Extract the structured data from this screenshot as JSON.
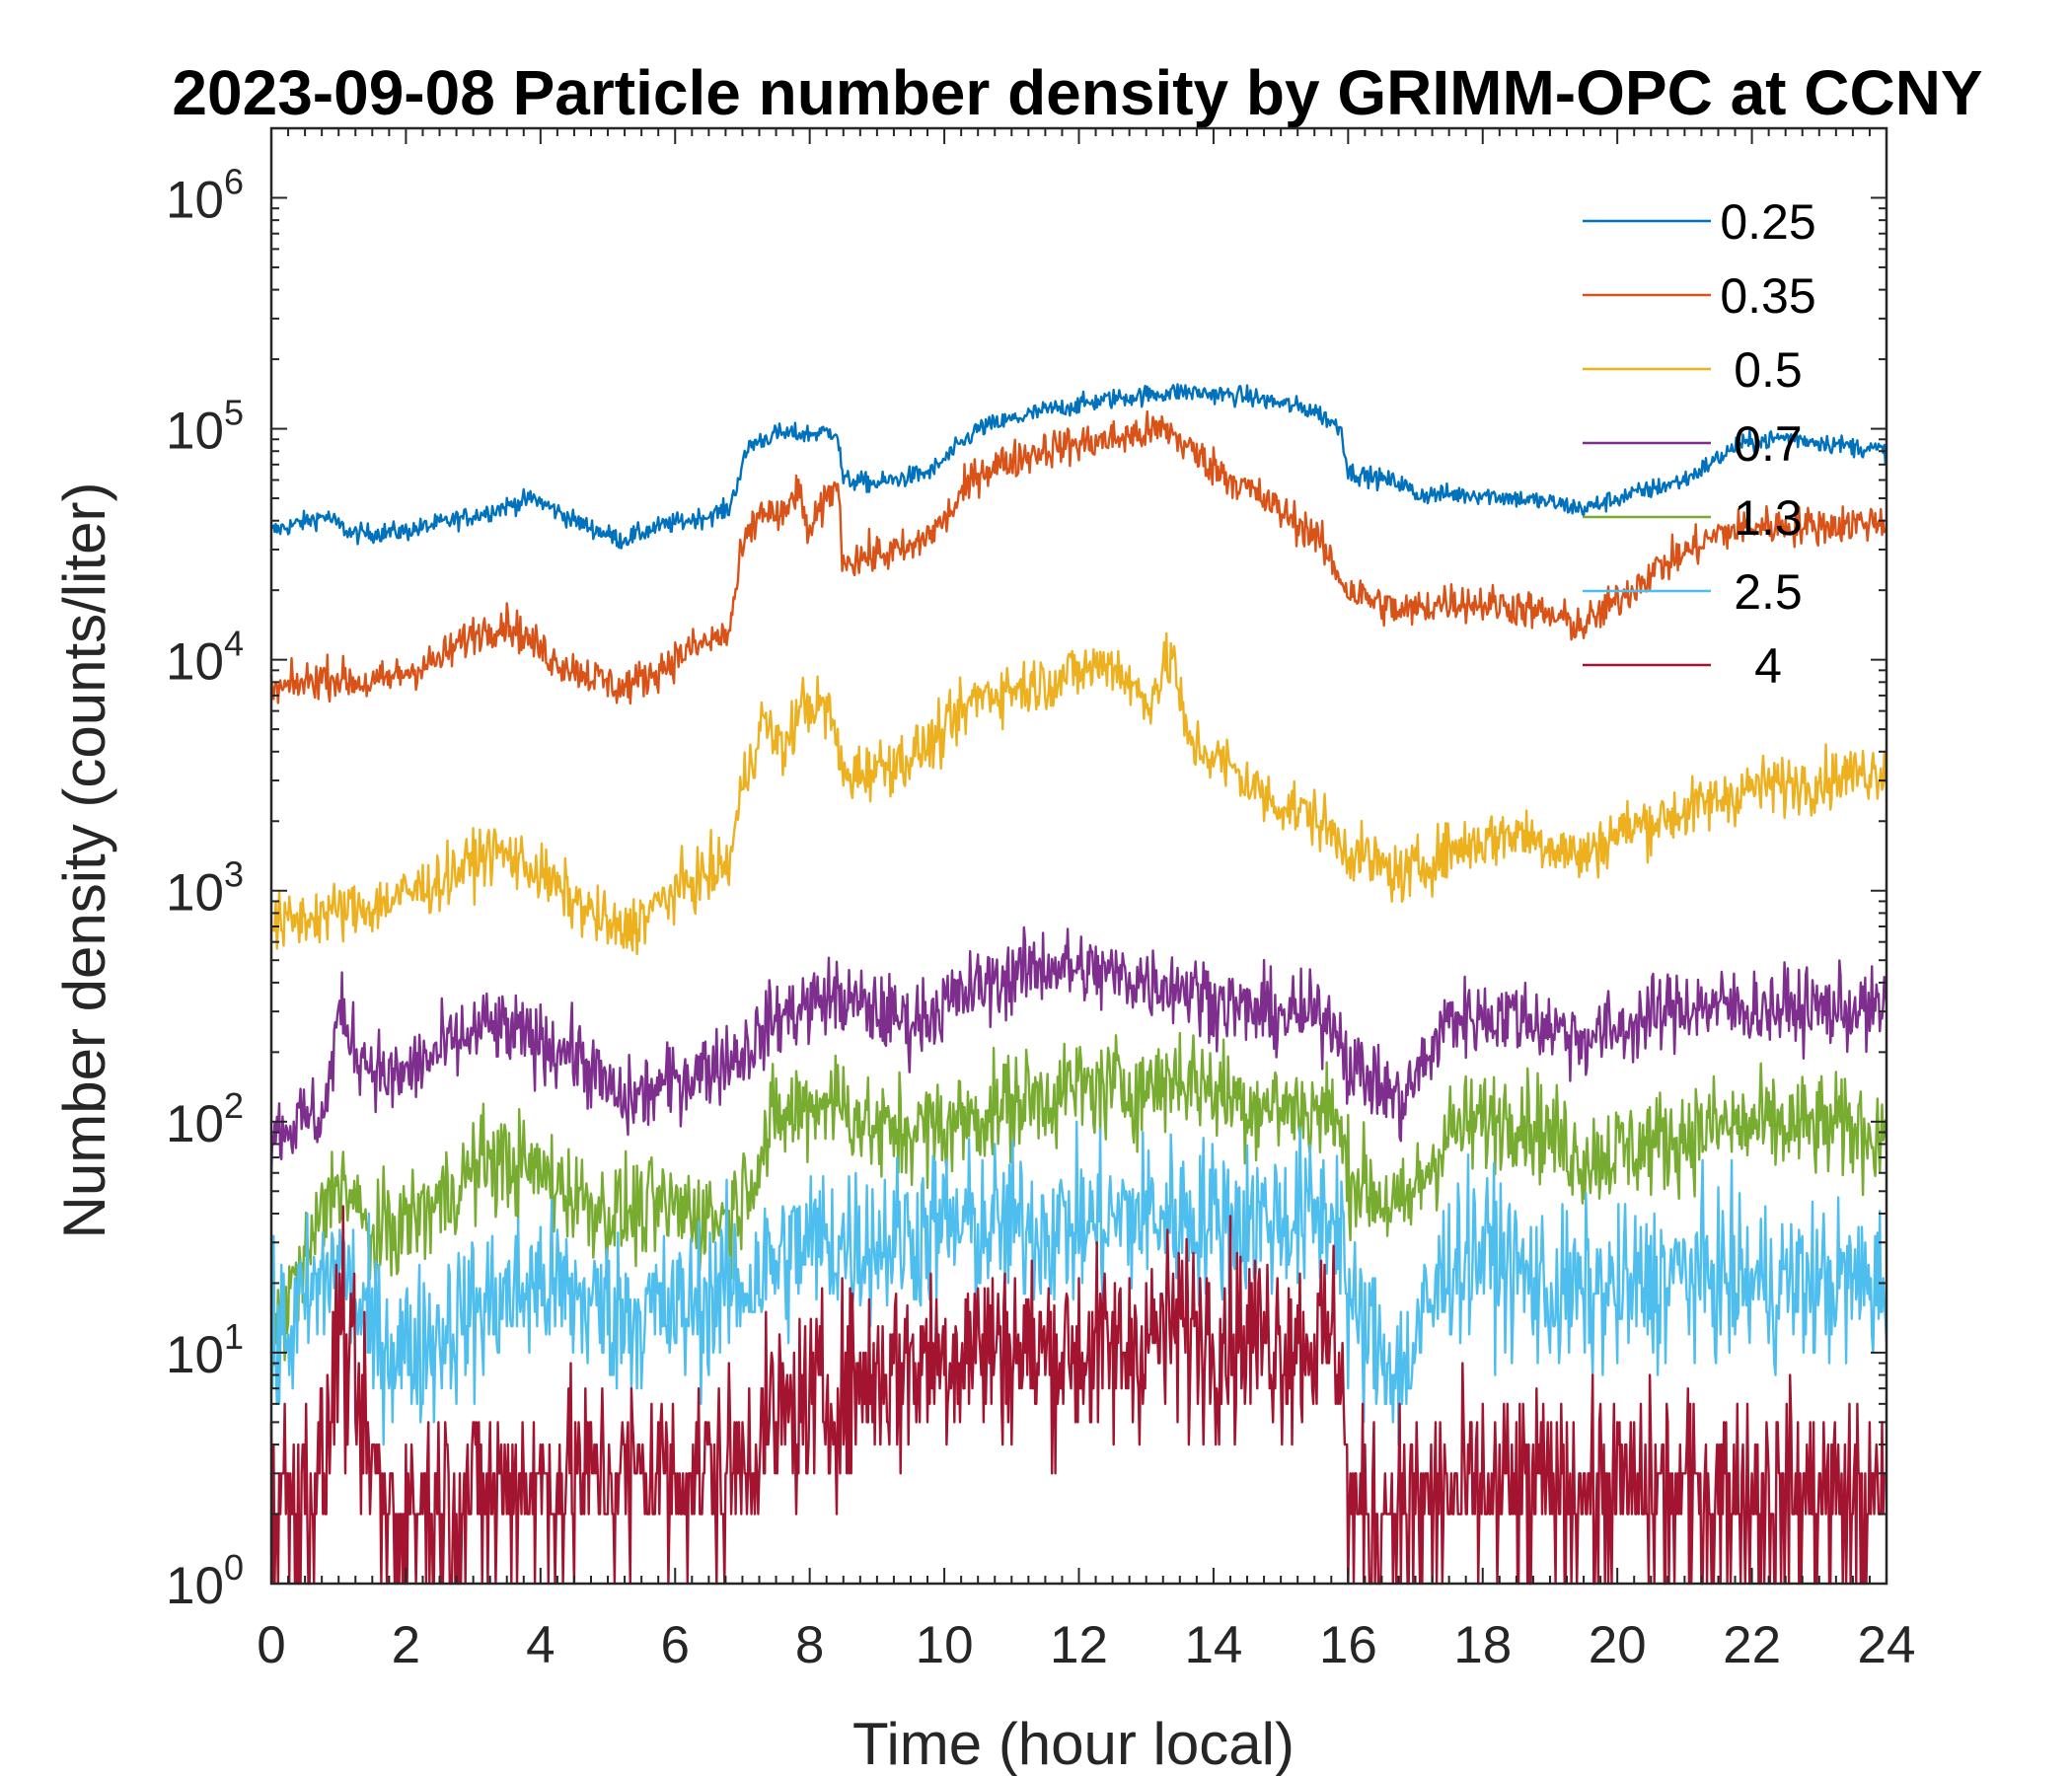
{
  "chart_data": {
    "type": "line",
    "title": "2023-09-08 Particle number density by GRIMM-OPC at CCNY",
    "xlabel": "Time (hour local)",
    "ylabel": "Number density (counts/liter)",
    "xlim": [
      0,
      24
    ],
    "ylim": [
      1,
      2000000
    ],
    "yscale": "log",
    "xticks": [
      0,
      2,
      4,
      6,
      8,
      10,
      12,
      14,
      16,
      18,
      20,
      22,
      24
    ],
    "yticks": [
      {
        "value": 1,
        "base": "10",
        "exp": "0"
      },
      {
        "value": 10,
        "base": "10",
        "exp": "1"
      },
      {
        "value": 100,
        "base": "10",
        "exp": "2"
      },
      {
        "value": 1000,
        "base": "10",
        "exp": "3"
      },
      {
        "value": 10000,
        "base": "10",
        "exp": "4"
      },
      {
        "value": 100000,
        "base": "10",
        "exp": "5"
      },
      {
        "value": 1000000,
        "base": "10",
        "exp": "6"
      }
    ],
    "legend_position": "top-right",
    "series": [
      {
        "name": "0.25",
        "color": "#0072BD",
        "noise": 0.03,
        "points": [
          [
            0,
            36000
          ],
          [
            0.8,
            42000
          ],
          [
            1.2,
            35000
          ],
          [
            2,
            36000
          ],
          [
            3,
            42000
          ],
          [
            3.9,
            50000
          ],
          [
            4.5,
            40000
          ],
          [
            5.2,
            33000
          ],
          [
            5.8,
            38000
          ],
          [
            6.5,
            42000
          ],
          [
            6.8,
            45000
          ],
          [
            7.1,
            85000
          ],
          [
            7.5,
            95000
          ],
          [
            8,
            95000
          ],
          [
            8.4,
            98000
          ],
          [
            8.5,
            60000
          ],
          [
            9,
            58000
          ],
          [
            9.8,
            65000
          ],
          [
            10.5,
            100000
          ],
          [
            11.5,
            120000
          ],
          [
            12.5,
            135000
          ],
          [
            13.5,
            145000
          ],
          [
            14.5,
            138000
          ],
          [
            15.5,
            120000
          ],
          [
            15.9,
            100000
          ],
          [
            16,
            65000
          ],
          [
            16.8,
            58000
          ],
          [
            17,
            52000
          ],
          [
            18,
            52000
          ],
          [
            19,
            48000
          ],
          [
            19.5,
            45000
          ],
          [
            20,
            50000
          ],
          [
            21,
            60000
          ],
          [
            21.8,
            85000
          ],
          [
            22.5,
            92000
          ],
          [
            24,
            80000
          ]
        ]
      },
      {
        "name": "0.35",
        "color": "#D95319",
        "noise": 0.06,
        "points": [
          [
            0,
            7200
          ],
          [
            0.8,
            8500
          ],
          [
            1.5,
            7800
          ],
          [
            2.5,
            10000
          ],
          [
            3,
            13000
          ],
          [
            3.5,
            14500
          ],
          [
            4.2,
            10000
          ],
          [
            5.2,
            7500
          ],
          [
            5.6,
            8500
          ],
          [
            6.2,
            11000
          ],
          [
            6.8,
            13000
          ],
          [
            7,
            30000
          ],
          [
            7.3,
            45000
          ],
          [
            7.6,
            40000
          ],
          [
            7.8,
            55000
          ],
          [
            8,
            35000
          ],
          [
            8.4,
            60000
          ],
          [
            8.5,
            27000
          ],
          [
            9.5,
            30000
          ],
          [
            10,
            40000
          ],
          [
            10.5,
            65000
          ],
          [
            11.5,
            82000
          ],
          [
            12.5,
            90000
          ],
          [
            13.3,
            100000
          ],
          [
            13.8,
            75000
          ],
          [
            14.5,
            55000
          ],
          [
            15.5,
            35000
          ],
          [
            16,
            20000
          ],
          [
            16.8,
            16000
          ],
          [
            17.5,
            18000
          ],
          [
            18.5,
            17000
          ],
          [
            19.5,
            14000
          ],
          [
            20,
            18000
          ],
          [
            20.5,
            24000
          ],
          [
            21.5,
            35000
          ],
          [
            22,
            38000
          ],
          [
            23,
            38000
          ],
          [
            24,
            40000
          ]
        ]
      },
      {
        "name": "0.5",
        "color": "#EDB120",
        "noise": 0.09,
        "points": [
          [
            0,
            700
          ],
          [
            0.8,
            800
          ],
          [
            1.5,
            850
          ],
          [
            2.5,
            1100
          ],
          [
            3.3,
            1500
          ],
          [
            3.8,
            1300
          ],
          [
            4.5,
            900
          ],
          [
            5.2,
            650
          ],
          [
            6,
            1000
          ],
          [
            6.8,
            1300
          ],
          [
            7,
            2800
          ],
          [
            7.3,
            5500
          ],
          [
            7.6,
            4000
          ],
          [
            7.9,
            6500
          ],
          [
            8.3,
            6000
          ],
          [
            8.5,
            3100
          ],
          [
            9.5,
            3800
          ],
          [
            10,
            4800
          ],
          [
            10.5,
            7000
          ],
          [
            11.5,
            8000
          ],
          [
            12.5,
            9800
          ],
          [
            13,
            6500
          ],
          [
            13.4,
            10500
          ],
          [
            13.6,
            4500
          ],
          [
            14.2,
            3500
          ],
          [
            14.8,
            2500
          ],
          [
            15.5,
            2100
          ],
          [
            16,
            1500
          ],
          [
            16.8,
            1150
          ],
          [
            17.5,
            1500
          ],
          [
            18.5,
            1800
          ],
          [
            19.5,
            1400
          ],
          [
            20,
            1800
          ],
          [
            21,
            2200
          ],
          [
            22,
            2800
          ],
          [
            23,
            3000
          ],
          [
            24,
            3400
          ]
        ]
      },
      {
        "name": "0.7",
        "color": "#7E2F8E",
        "noise": 0.12,
        "points": [
          [
            0,
            90
          ],
          [
            0.8,
            110
          ],
          [
            1,
            300
          ],
          [
            1.3,
            200
          ],
          [
            1.8,
            150
          ],
          [
            2.5,
            200
          ],
          [
            3.2,
            260
          ],
          [
            3.8,
            230
          ],
          [
            4.5,
            200
          ],
          [
            5.2,
            120
          ],
          [
            6,
            150
          ],
          [
            7,
            200
          ],
          [
            7.5,
            280
          ],
          [
            8.3,
            350
          ],
          [
            9.5,
            270
          ],
          [
            10.5,
            380
          ],
          [
            11.5,
            480
          ],
          [
            12.5,
            430
          ],
          [
            13.5,
            390
          ],
          [
            14.5,
            300
          ],
          [
            15.8,
            280
          ],
          [
            16,
            180
          ],
          [
            16.8,
            120
          ],
          [
            17.5,
            280
          ],
          [
            18.5,
            290
          ],
          [
            19.5,
            230
          ],
          [
            20,
            250
          ],
          [
            21,
            320
          ],
          [
            22,
            310
          ],
          [
            23,
            310
          ],
          [
            24,
            300
          ]
        ]
      },
      {
        "name": "1.3",
        "color": "#77AC30",
        "noise": 0.16,
        "points": [
          [
            0,
            12
          ],
          [
            0.5,
            25
          ],
          [
            1,
            60
          ],
          [
            1.5,
            30
          ],
          [
            2.5,
            45
          ],
          [
            3.2,
            70
          ],
          [
            4,
            60
          ],
          [
            5,
            40
          ],
          [
            6,
            42
          ],
          [
            6.8,
            38
          ],
          [
            7.5,
            100
          ],
          [
            8.3,
            130
          ],
          [
            9,
            90
          ],
          [
            10,
            95
          ],
          [
            11,
            120
          ],
          [
            12,
            140
          ],
          [
            13,
            140
          ],
          [
            13.5,
            160
          ],
          [
            14.5,
            120
          ],
          [
            15.8,
            110
          ],
          [
            16,
            60
          ],
          [
            16.8,
            40
          ],
          [
            17.5,
            90
          ],
          [
            18.5,
            110
          ],
          [
            19.5,
            70
          ],
          [
            20.5,
            80
          ],
          [
            21.5,
            95
          ],
          [
            23,
            95
          ],
          [
            24,
            90
          ]
        ]
      },
      {
        "name": "2.5",
        "color": "#4DBEEE",
        "noise": 0.25,
        "points": [
          [
            0,
            10
          ],
          [
            1,
            25
          ],
          [
            1.5,
            12
          ],
          [
            2,
            10
          ],
          [
            3,
            15
          ],
          [
            4,
            20
          ],
          [
            5,
            15
          ],
          [
            6,
            15
          ],
          [
            7,
            20
          ],
          [
            8,
            30
          ],
          [
            9,
            30
          ],
          [
            10,
            35
          ],
          [
            11,
            35
          ],
          [
            12,
            35
          ],
          [
            13,
            40
          ],
          [
            14,
            38
          ],
          [
            15,
            38
          ],
          [
            15.9,
            40
          ],
          [
            16,
            15
          ],
          [
            16.8,
            8
          ],
          [
            17.5,
            25
          ],
          [
            18,
            28
          ],
          [
            19,
            18
          ],
          [
            20,
            18
          ],
          [
            21,
            22
          ],
          [
            22,
            20
          ],
          [
            23,
            20
          ],
          [
            24,
            20
          ]
        ]
      },
      {
        "name": "4",
        "color": "#A2142F",
        "noise": 0.3,
        "points": [
          [
            0,
            2.2
          ],
          [
            0.8,
            3
          ],
          [
            1,
            15
          ],
          [
            1.3,
            5
          ],
          [
            1.7,
            2
          ],
          [
            3,
            2.5
          ],
          [
            5,
            3
          ],
          [
            6,
            3
          ],
          [
            6.8,
            3
          ],
          [
            7.5,
            5
          ],
          [
            8.5,
            7
          ],
          [
            9.5,
            9
          ],
          [
            10.5,
            11
          ],
          [
            11.5,
            10
          ],
          [
            12.5,
            10
          ],
          [
            13.5,
            13
          ],
          [
            14.5,
            12
          ],
          [
            15.9,
            11
          ],
          [
            16,
            2
          ],
          [
            17,
            2.2
          ],
          [
            18,
            2.5
          ],
          [
            19,
            2.5
          ],
          [
            20,
            2.5
          ],
          [
            21,
            2.5
          ],
          [
            22,
            2.5
          ],
          [
            23,
            2.5
          ],
          [
            24,
            2.2
          ]
        ]
      }
    ]
  }
}
